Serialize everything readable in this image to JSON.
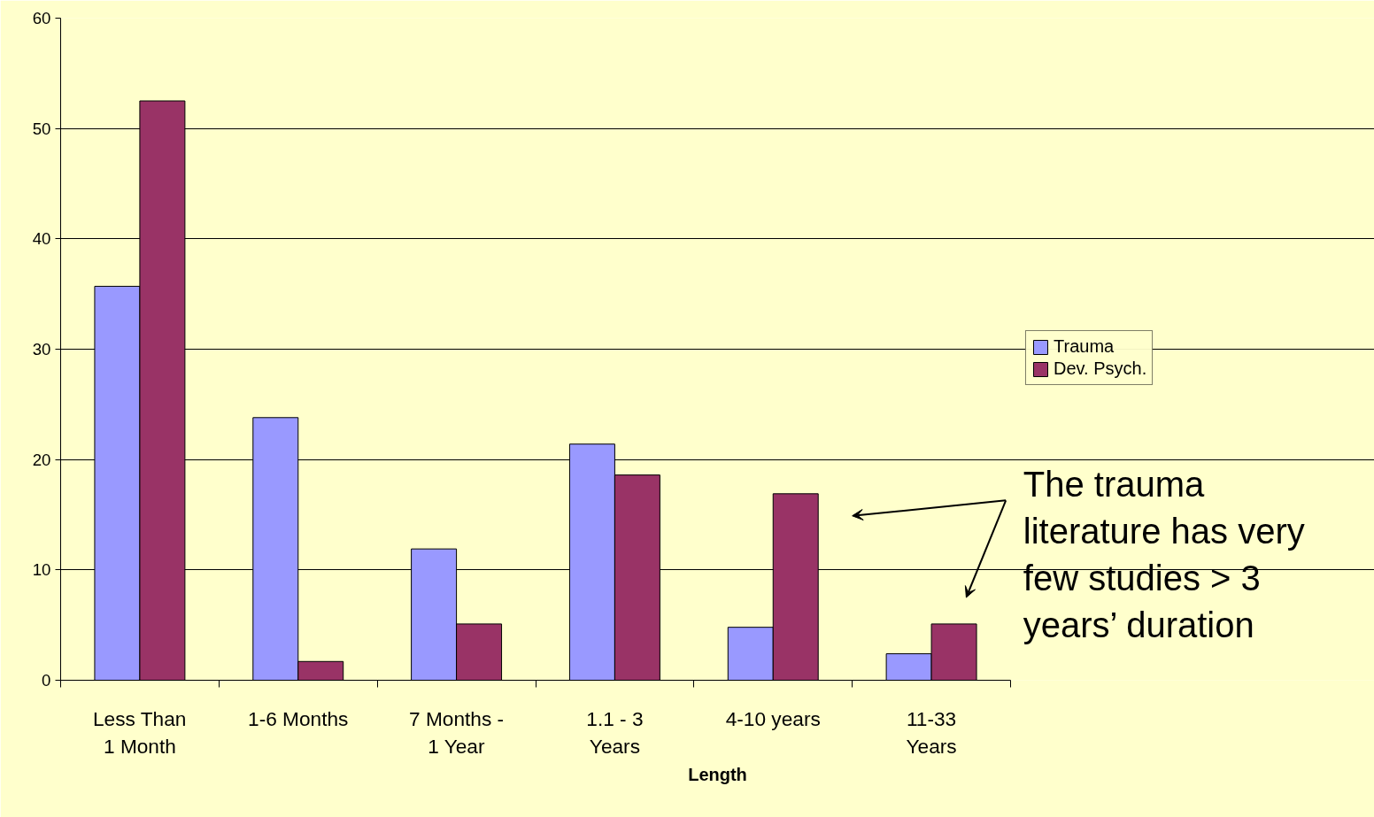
{
  "chart_data": {
    "type": "bar",
    "xlabel": "Length",
    "categories": [
      "Less Than 1 Month",
      "1-6 Months",
      "7 Months - 1 Year",
      "1.1 - 3 Years",
      "4-10 years",
      "11-33 Years"
    ],
    "series": [
      {
        "name": "Trauma",
        "color": "#9999ff",
        "values": [
          35.7,
          23.8,
          11.9,
          21.4,
          4.8,
          2.4
        ]
      },
      {
        "name": "Dev. Psych.",
        "color": "#993366",
        "values": [
          52.5,
          1.7,
          5.1,
          18.6,
          16.9,
          5.1
        ]
      }
    ],
    "ylim": [
      0,
      60
    ],
    "yticks": [
      0,
      10,
      20,
      30,
      40,
      50,
      60
    ],
    "grid": "y",
    "legend": "right",
    "annotations": [
      "The trauma literature has very few studies > 3 years’ duration"
    ]
  }
}
